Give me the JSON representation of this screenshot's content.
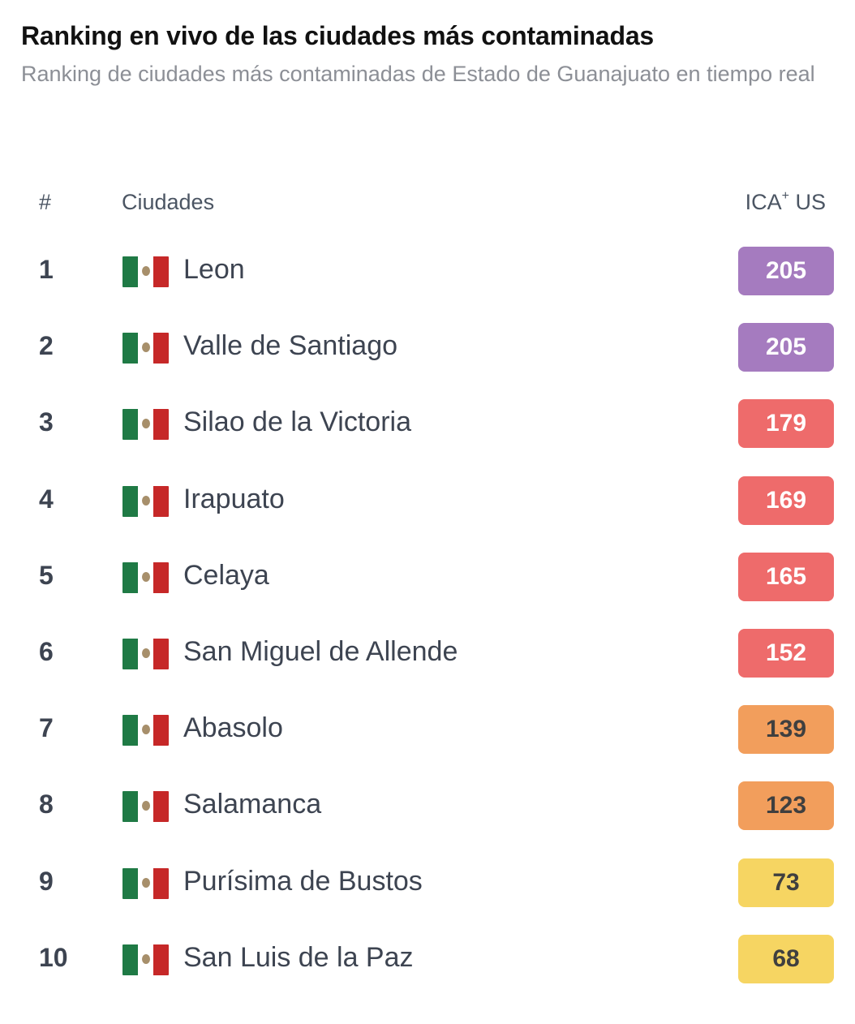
{
  "header": {
    "title": "Ranking en vivo de las ciudades más contaminadas",
    "subtitle": "Ranking de ciudades más contaminadas de Estado de Guanajuato en tiempo real"
  },
  "table": {
    "columns": {
      "rank": "#",
      "city": "Ciudades",
      "aqi": "ICA",
      "aqi_sup": "+",
      "aqi_suffix": " US"
    },
    "rows": [
      {
        "rank": "1",
        "city": "Leon",
        "aqi": "205",
        "flag": "mexico-flag-icon",
        "bg": "#a57bbf",
        "fg": "#ffffff"
      },
      {
        "rank": "2",
        "city": "Valle de Santiago",
        "aqi": "205",
        "flag": "mexico-flag-icon",
        "bg": "#a57bbf",
        "fg": "#ffffff"
      },
      {
        "rank": "3",
        "city": "Silao de la Victoria",
        "aqi": "179",
        "flag": "mexico-flag-icon",
        "bg": "#ee6b6b",
        "fg": "#ffffff"
      },
      {
        "rank": "4",
        "city": "Irapuato",
        "aqi": "169",
        "flag": "mexico-flag-icon",
        "bg": "#ee6b6b",
        "fg": "#ffffff"
      },
      {
        "rank": "5",
        "city": "Celaya",
        "aqi": "165",
        "flag": "mexico-flag-icon",
        "bg": "#ee6b6b",
        "fg": "#ffffff"
      },
      {
        "rank": "6",
        "city": "San Miguel de Allende",
        "aqi": "152",
        "flag": "mexico-flag-icon",
        "bg": "#ee6b6b",
        "fg": "#ffffff"
      },
      {
        "rank": "7",
        "city": "Abasolo",
        "aqi": "139",
        "flag": "mexico-flag-icon",
        "bg": "#f29e5c",
        "fg": "#3f3f3f"
      },
      {
        "rank": "8",
        "city": "Salamanca",
        "aqi": "123",
        "flag": "mexico-flag-icon",
        "bg": "#f29e5c",
        "fg": "#3f3f3f"
      },
      {
        "rank": "9",
        "city": "Purísima de Bustos",
        "aqi": "73",
        "flag": "mexico-flag-icon",
        "bg": "#f6d562",
        "fg": "#3f3f3f"
      },
      {
        "rank": "10",
        "city": "San Luis de la Paz",
        "aqi": "68",
        "flag": "mexico-flag-icon",
        "bg": "#f6d562",
        "fg": "#3f3f3f"
      }
    ]
  }
}
